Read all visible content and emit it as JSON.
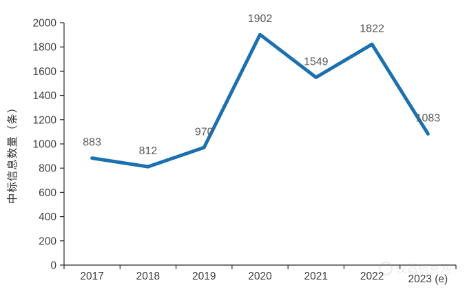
{
  "chart_data": {
    "type": "line",
    "title": "",
    "categories": [
      "2017",
      "2018",
      "2019",
      "2020",
      "2021",
      "2022",
      "2023 (e)"
    ],
    "values": [
      883,
      812,
      970,
      1902,
      1549,
      1822,
      1083
    ],
    "data_labels": [
      "883",
      "812",
      "970",
      "1902",
      "1549",
      "1822",
      "1083"
    ],
    "xlabel": "",
    "ylabel": "中标信息数量（条）",
    "ylim": [
      0,
      2000
    ],
    "y_tick_step": 200,
    "y_tick_labels": [
      "0",
      "200",
      "400",
      "600",
      "800",
      "1000",
      "1200",
      "1400",
      "1600",
      "1800",
      "2000"
    ],
    "grid": false,
    "legend": "none",
    "series_color": "#1C70B0",
    "axis_color": "#262626",
    "tick_label_color": "#3d3d3d",
    "data_label_color": "#595959"
  },
  "watermark": {
    "text": "仪器信息网"
  }
}
